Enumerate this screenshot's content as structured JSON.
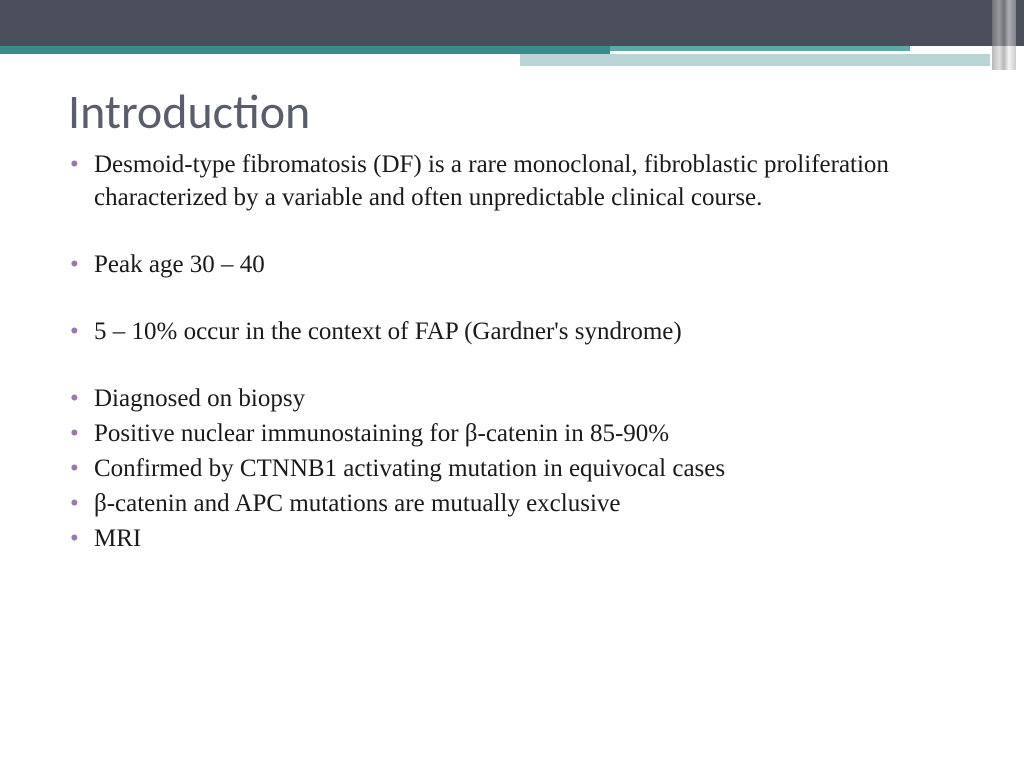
{
  "slide": {
    "title": "Introduction",
    "bullets": [
      "Desmoid-type fibromatosis (DF) is a rare monoclonal, fibroblastic proliferation characterized by a variable and often unpredictable clinical course.",
      "Peak age 30 – 40",
      "5 – 10% occur in the context of FAP (Gardner's syndrome)",
      "Diagnosed on biopsy",
      "Positive nuclear immunostaining for β-catenin in 85-90%",
      "Confirmed by CTNNB1 activating mutation in equivocal cases",
      "β-catenin and APC mutations are mutually exclusive",
      "MRI"
    ]
  },
  "style": {
    "background_color": "#ffffff",
    "header_dark": "#4a4e5a",
    "header_teal": "#3d8a8a",
    "header_light": "#b8d4d4",
    "title_color": "#5a5e6a",
    "title_fontsize": 48,
    "title_font": "Calibri",
    "bullet_color": "#9a7ba8",
    "body_color": "#1a1a1a",
    "body_fontsize": 25,
    "body_font": "Georgia"
  }
}
